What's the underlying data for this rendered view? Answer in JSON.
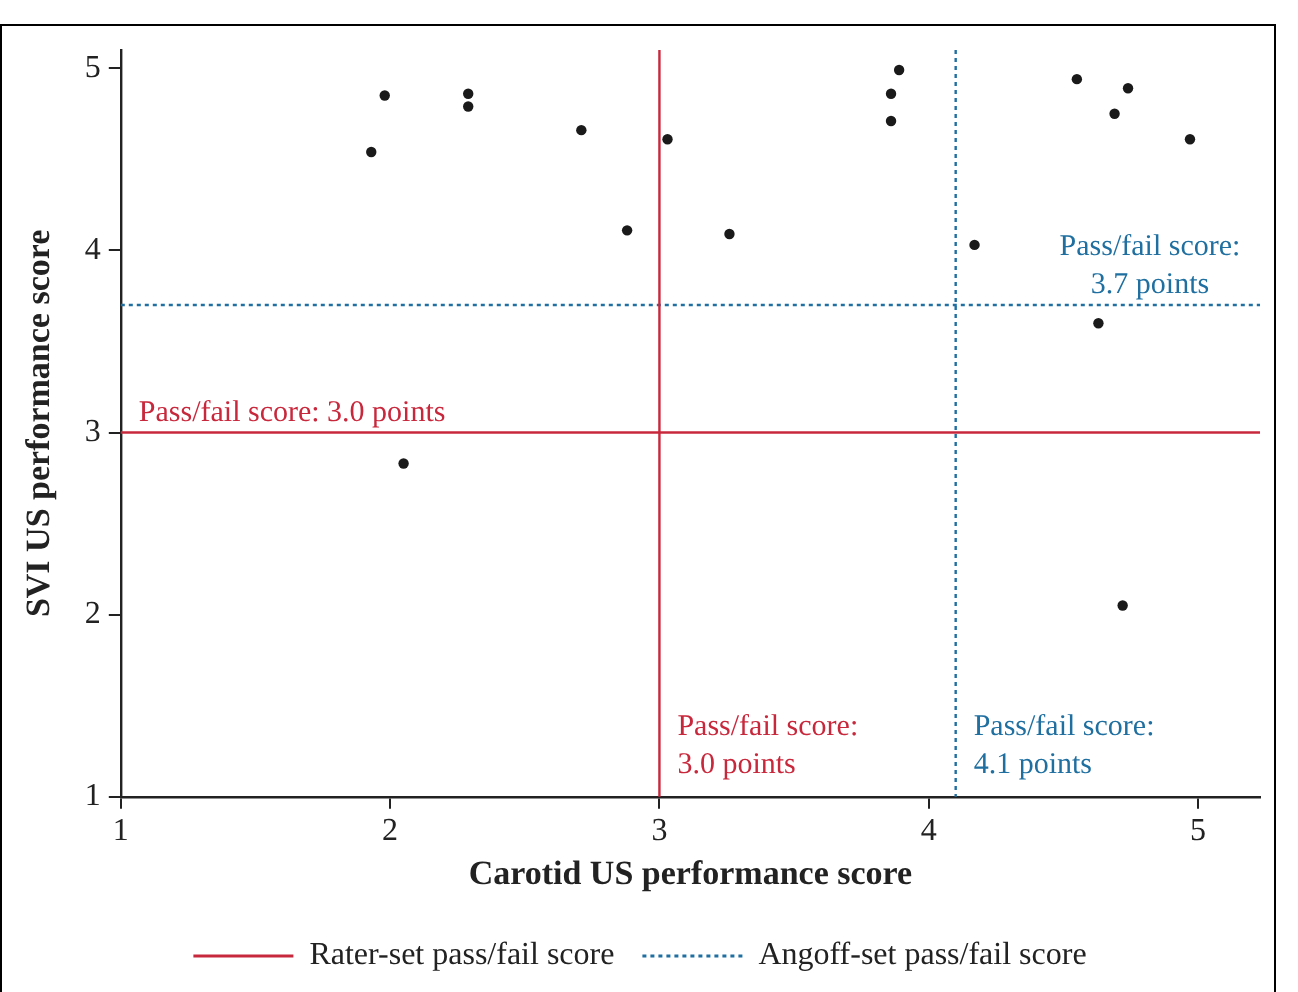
{
  "chart_data": {
    "type": "scatter",
    "xlabel": "Carotid US performance score",
    "ylabel": "SVI US performance score",
    "xlim": [
      1,
      5.23
    ],
    "ylim": [
      1,
      5.1
    ],
    "xticks": [
      1,
      2,
      3,
      4,
      5
    ],
    "yticks": [
      1,
      2,
      3,
      4,
      5
    ],
    "grid": false,
    "legend": "bottom",
    "marker": "circle",
    "series": [
      {
        "color": "#1a1a1a",
        "x": [
          1.93,
          1.98,
          2.29,
          2.29,
          2.71,
          2.88,
          3.03,
          3.26,
          2.05,
          3.89,
          3.86,
          3.86,
          4.17,
          4.55,
          4.74,
          4.69,
          4.97,
          4.63,
          4.72
        ],
        "values": [
          4.54,
          4.85,
          4.86,
          4.79,
          4.66,
          4.11,
          4.61,
          4.09,
          2.83,
          4.99,
          4.86,
          4.71,
          4.03,
          4.94,
          4.89,
          4.75,
          4.61,
          3.6,
          2.05
        ]
      },
      {
        "type": "line",
        "name": "Rater-set pass/fail score",
        "color": "#c8283c",
        "line_style": "solid"
      },
      {
        "type": "line",
        "name": "Angoff-set pass/fail score",
        "color": "#1f6fa0",
        "line_style": "dotted"
      }
    ],
    "ref_lines": [
      {
        "axis": "y",
        "value": 3.0,
        "label": "Pass/fail score: 3.0 points",
        "color": "#c8283c",
        "line_style": "solid"
      },
      {
        "axis": "y",
        "value": 3.7,
        "label": "Pass/fail score: 3.7 points",
        "color": "#1f6fa0",
        "line_style": "dotted"
      },
      {
        "axis": "x",
        "value": 3.0,
        "label": "Pass/fail score: 3.0 points",
        "color": "#c8283c",
        "line_style": "solid"
      },
      {
        "axis": "x",
        "value": 4.1,
        "label": "Pass/fail score: 4.1 points",
        "color": "#1f6fa0",
        "line_style": "dotted"
      }
    ]
  }
}
